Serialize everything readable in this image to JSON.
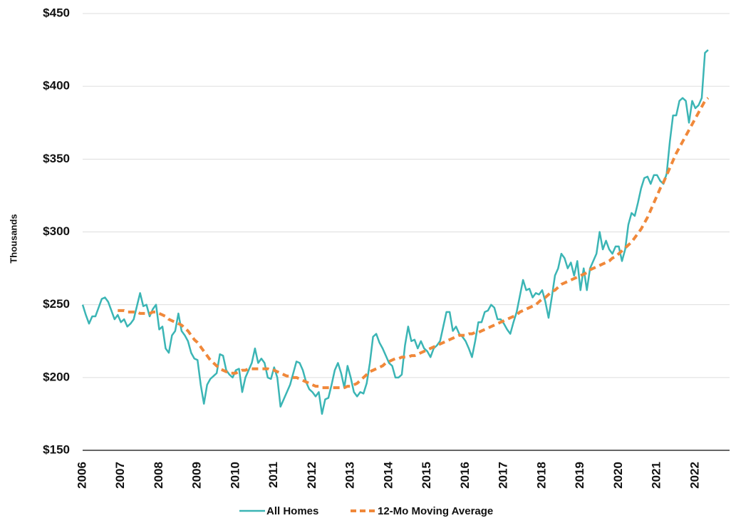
{
  "chart_data": {
    "type": "line",
    "y_label": "Thousands",
    "categories": [
      "2006",
      null,
      null,
      null,
      null,
      null,
      null,
      null,
      null,
      null,
      null,
      null,
      "2007",
      null,
      null,
      null,
      null,
      null,
      null,
      null,
      null,
      null,
      null,
      null,
      "2008",
      null,
      null,
      null,
      null,
      null,
      null,
      null,
      null,
      null,
      null,
      null,
      "2009",
      null,
      null,
      null,
      null,
      null,
      null,
      null,
      null,
      null,
      null,
      null,
      "2010",
      null,
      null,
      null,
      null,
      null,
      null,
      null,
      null,
      null,
      null,
      null,
      "2011",
      null,
      null,
      null,
      null,
      null,
      null,
      null,
      null,
      null,
      null,
      null,
      "2012",
      null,
      null,
      null,
      null,
      null,
      null,
      null,
      null,
      null,
      null,
      null,
      "2013",
      null,
      null,
      null,
      null,
      null,
      null,
      null,
      null,
      null,
      null,
      null,
      "2014",
      null,
      null,
      null,
      null,
      null,
      null,
      null,
      null,
      null,
      null,
      null,
      "2015",
      null,
      null,
      null,
      null,
      null,
      null,
      null,
      null,
      null,
      null,
      null,
      "2016",
      null,
      null,
      null,
      null,
      null,
      null,
      null,
      null,
      null,
      null,
      null,
      "2017",
      null,
      null,
      null,
      null,
      null,
      null,
      null,
      null,
      null,
      null,
      null,
      "2018",
      null,
      null,
      null,
      null,
      null,
      null,
      null,
      null,
      null,
      null,
      null,
      "2019",
      null,
      null,
      null,
      null,
      null,
      null,
      null,
      null,
      null,
      null,
      null,
      "2020",
      null,
      null,
      null,
      null,
      null,
      null,
      null,
      null,
      null,
      null,
      null,
      "2021",
      null,
      null,
      null,
      null,
      null,
      null,
      null,
      null,
      null,
      null,
      null,
      "2022",
      null,
      null,
      null,
      null
    ],
    "series": [
      {
        "name": "All Homes",
        "color": "#3bb5b5",
        "style": "solid",
        "values": [
          250,
          243,
          237,
          242,
          242,
          248,
          254,
          255,
          252,
          246,
          240,
          243,
          238,
          240,
          235,
          237,
          240,
          249,
          258,
          249,
          250,
          242,
          247,
          250,
          233,
          235,
          220,
          217,
          229,
          232,
          244,
          232,
          229,
          225,
          217,
          213,
          212,
          195,
          182,
          195,
          199,
          201,
          203,
          216,
          215,
          205,
          202,
          200,
          205,
          206,
          190,
          200,
          205,
          210,
          220,
          210,
          213,
          210,
          200,
          199,
          207,
          200,
          180,
          185,
          190,
          195,
          203,
          211,
          210,
          205,
          197,
          192,
          190,
          187,
          190,
          175,
          185,
          186,
          195,
          205,
          210,
          203,
          193,
          208,
          200,
          190,
          187,
          190,
          189,
          196,
          210,
          228,
          230,
          224,
          220,
          215,
          210,
          208,
          200,
          200,
          202,
          222,
          235,
          225,
          226,
          220,
          225,
          220,
          218,
          214,
          220,
          222,
          225,
          235,
          245,
          245,
          232,
          235,
          230,
          228,
          225,
          220,
          214,
          225,
          238,
          238,
          245,
          246,
          250,
          248,
          240,
          240,
          237,
          233,
          230,
          238,
          245,
          256,
          267,
          260,
          261,
          255,
          258,
          257,
          260,
          252,
          241,
          255,
          270,
          275,
          285,
          282,
          275,
          279,
          270,
          280,
          260,
          275,
          260,
          275,
          280,
          285,
          300,
          288,
          294,
          288,
          285,
          290,
          290,
          280,
          288,
          305,
          313,
          311,
          320,
          330,
          337,
          338,
          333,
          339,
          339,
          335,
          333,
          340,
          362,
          380,
          380,
          390,
          392,
          390,
          375,
          390,
          385,
          387,
          392,
          423,
          425
        ]
      },
      {
        "name": "12-Mo Moving Average",
        "color": "#f0883a",
        "style": "dashed",
        "values": [
          null,
          null,
          null,
          null,
          null,
          null,
          null,
          null,
          null,
          null,
          null,
          246,
          246,
          246,
          245,
          245,
          245,
          245,
          244,
          244,
          244,
          244,
          245,
          245,
          244,
          243,
          242,
          240,
          239,
          238,
          237,
          236,
          234,
          232,
          229,
          226,
          224,
          221,
          218,
          215,
          212,
          210,
          208,
          206,
          205,
          204,
          203,
          203,
          203,
          204,
          205,
          205,
          206,
          206,
          206,
          206,
          206,
          206,
          206,
          205,
          205,
          204,
          203,
          202,
          201,
          201,
          200,
          200,
          199,
          198,
          197,
          196,
          195,
          194,
          194,
          193,
          193,
          193,
          193,
          193,
          193,
          193,
          193,
          194,
          194,
          195,
          196,
          198,
          200,
          202,
          204,
          205,
          206,
          207,
          208,
          210,
          211,
          212,
          213,
          213,
          214,
          214,
          214,
          215,
          215,
          216,
          217,
          218,
          219,
          220,
          221,
          222,
          223,
          224,
          225,
          226,
          227,
          228,
          229,
          229,
          229,
          230,
          230,
          231,
          231,
          232,
          233,
          234,
          235,
          236,
          237,
          238,
          239,
          240,
          241,
          242,
          243,
          245,
          246,
          247,
          248,
          249,
          250,
          252,
          254,
          255,
          257,
          259,
          260,
          262,
          264,
          265,
          266,
          267,
          268,
          269,
          270,
          271,
          272,
          274,
          275,
          276,
          277,
          278,
          279,
          280,
          282,
          283,
          285,
          287,
          289,
          291,
          293,
          296,
          299,
          302,
          306,
          310,
          315,
          320,
          325,
          330,
          334,
          339,
          344,
          349,
          354,
          358,
          362,
          366,
          370,
          374,
          378,
          382,
          386,
          390,
          392
        ]
      }
    ],
    "ylim": [
      150,
      450
    ],
    "yticks": [
      {
        "value": 150,
        "label": "$150"
      },
      {
        "value": 200,
        "label": "$200"
      },
      {
        "value": 250,
        "label": "$250"
      },
      {
        "value": 300,
        "label": "$300"
      },
      {
        "value": 350,
        "label": "$350"
      },
      {
        "value": 400,
        "label": "$400"
      },
      {
        "value": 450,
        "label": "$450"
      }
    ],
    "grid": true,
    "legend": "bottom"
  }
}
